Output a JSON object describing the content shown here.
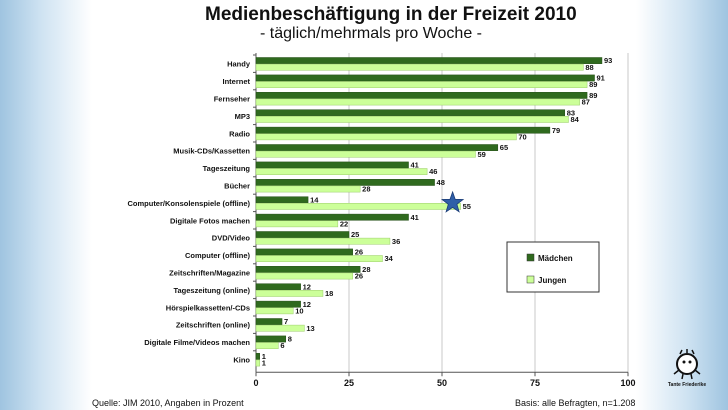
{
  "chart_data": {
    "type": "bar",
    "orientation": "horizontal",
    "title": "Medienbeschäftigung in der Freizeit 2010",
    "subtitle": "- täglich/mehrmals pro Woche -",
    "categories": [
      "Handy",
      "Internet",
      "Fernseher",
      "MP3",
      "Radio",
      "Musik-CDs/Kassetten",
      "Tageszeitung",
      "Bücher",
      "Computer/Konsolenspiele (offline)",
      "Digitale Fotos machen",
      "DVD/Video",
      "Computer (offline)",
      "Zeitschriften/Magazine",
      "Tageszeitung (online)",
      "Hörspielkassetten/-CDs",
      "Zeitschriften (online)",
      "Digitale Filme/Videos machen",
      "Kino"
    ],
    "series": [
      {
        "name": "Mädchen",
        "color": "#2f6a1e",
        "values": [
          93,
          91,
          89,
          83,
          79,
          65,
          41,
          48,
          14,
          41,
          25,
          26,
          28,
          12,
          12,
          7,
          8,
          1
        ]
      },
      {
        "name": "Jungen",
        "color": "#ccff99",
        "values": [
          88,
          89,
          87,
          84,
          70,
          59,
          46,
          28,
          55,
          22,
          36,
          34,
          26,
          18,
          10,
          13,
          6,
          1
        ]
      }
    ],
    "xlim": [
      0,
      100
    ],
    "xticks": [
      "0",
      "25",
      "50",
      "75",
      "100"
    ],
    "legend_position": "right-center",
    "grid": true
  },
  "footer": {
    "source": "Quelle: JIM 2010, Angaben in Prozent",
    "basis": "Basis: alle Befragten, n=1.208"
  },
  "logo_text": "Tante Friederike"
}
